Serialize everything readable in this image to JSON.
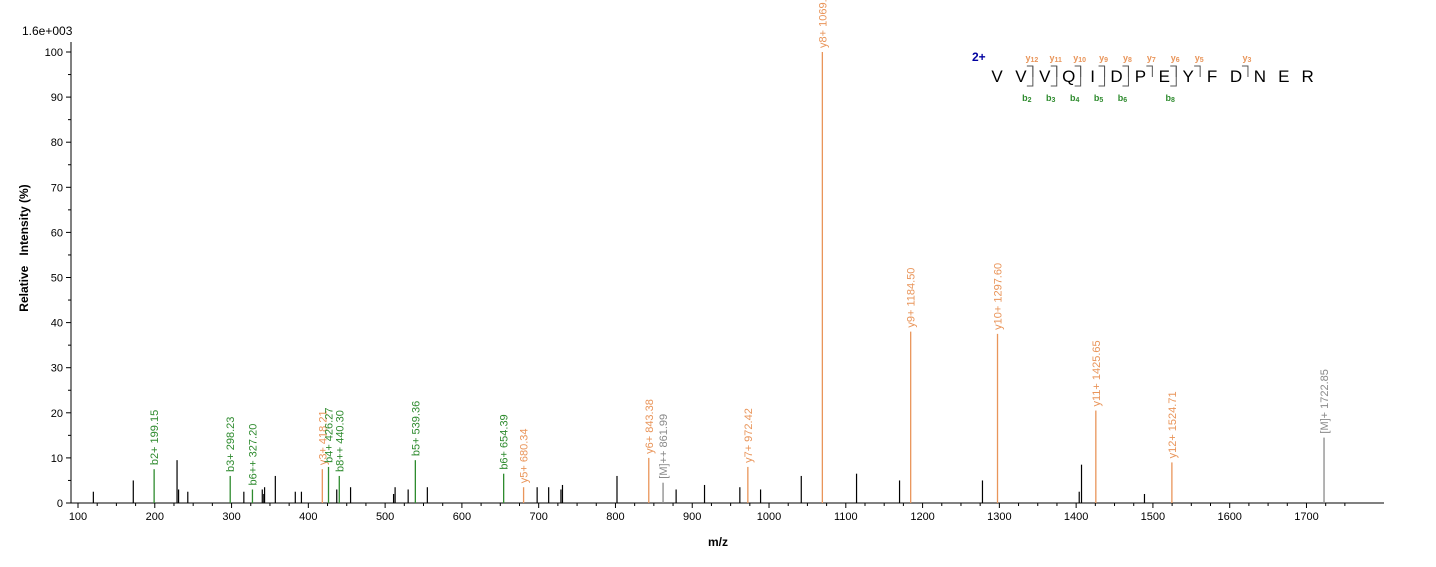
{
  "chart_data": {
    "type": "bar",
    "scale_label": "1.6e+003",
    "xlabel": "m/z",
    "ylabel": "Relative   Intensity (%)",
    "xlim": [
      100,
      1750
    ],
    "ylim": [
      0,
      100
    ],
    "x_ticks": [
      100,
      200,
      300,
      400,
      500,
      600,
      700,
      800,
      900,
      1000,
      1100,
      1200,
      1300,
      1400,
      1500,
      1600,
      1700
    ],
    "y_ticks": [
      0,
      10,
      20,
      30,
      40,
      50,
      60,
      70,
      80,
      90,
      100
    ],
    "colors": {
      "b_ion": "#2e8b2e",
      "y_ion": "#e9955a",
      "precursor": "#8a8a8a",
      "unassigned": "#000000",
      "axis": "#000000",
      "charge": "#0000a0"
    },
    "annotated_peaks": [
      {
        "mz": 199.15,
        "intensity": 7.5,
        "label": "b2+ 199.15",
        "ion": "b"
      },
      {
        "mz": 298.23,
        "intensity": 6.0,
        "label": "b3+ 298.23",
        "ion": "b"
      },
      {
        "mz": 327.2,
        "intensity": 3.0,
        "label": "b6++ 327.20",
        "ion": "b"
      },
      {
        "mz": 418.21,
        "intensity": 7.5,
        "label": "y3+ 418.21",
        "ion": "y"
      },
      {
        "mz": 426.27,
        "intensity": 8.0,
        "label": "b4+ 426.27",
        "ion": "b"
      },
      {
        "mz": 440.3,
        "intensity": 6.0,
        "label": "b8++ 440.30",
        "ion": "b"
      },
      {
        "mz": 539.36,
        "intensity": 9.5,
        "label": "b5+ 539.36",
        "ion": "b"
      },
      {
        "mz": 654.39,
        "intensity": 6.5,
        "label": "b6+ 654.39",
        "ion": "b"
      },
      {
        "mz": 680.34,
        "intensity": 3.5,
        "label": "y5+ 680.34",
        "ion": "y"
      },
      {
        "mz": 843.38,
        "intensity": 10.0,
        "label": "y6+ 843.38",
        "ion": "y"
      },
      {
        "mz": 861.99,
        "intensity": 4.5,
        "label": "[M]++ 861.99",
        "ion": "precursor"
      },
      {
        "mz": 972.42,
        "intensity": 8.0,
        "label": "y7+ 972.42",
        "ion": "y"
      },
      {
        "mz": 1069.47,
        "intensity": 100.0,
        "label": "y8+ 1069.47",
        "ion": "y"
      },
      {
        "mz": 1184.5,
        "intensity": 38.0,
        "label": "y9+ 1184.50",
        "ion": "y"
      },
      {
        "mz": 1297.6,
        "intensity": 37.5,
        "label": "y10+ 1297.60",
        "ion": "y"
      },
      {
        "mz": 1425.65,
        "intensity": 20.5,
        "label": "y11+ 1425.65",
        "ion": "y"
      },
      {
        "mz": 1524.71,
        "intensity": 9.0,
        "label": "y12+ 1524.71",
        "ion": "y"
      },
      {
        "mz": 1722.85,
        "intensity": 14.5,
        "label": "[M]+ 1722.85",
        "ion": "precursor"
      }
    ],
    "unassigned_peaks": [
      {
        "mz": 120,
        "intensity": 2.5
      },
      {
        "mz": 172,
        "intensity": 5.0
      },
      {
        "mz": 229,
        "intensity": 9.5
      },
      {
        "mz": 231,
        "intensity": 3.0
      },
      {
        "mz": 243,
        "intensity": 2.5
      },
      {
        "mz": 316,
        "intensity": 2.5
      },
      {
        "mz": 340,
        "intensity": 3.0
      },
      {
        "mz": 342,
        "intensity": 2.0
      },
      {
        "mz": 343,
        "intensity": 3.5
      },
      {
        "mz": 357,
        "intensity": 6.0
      },
      {
        "mz": 383,
        "intensity": 2.5
      },
      {
        "mz": 391,
        "intensity": 2.5
      },
      {
        "mz": 437,
        "intensity": 3.0
      },
      {
        "mz": 455,
        "intensity": 3.5
      },
      {
        "mz": 511,
        "intensity": 2.0
      },
      {
        "mz": 513,
        "intensity": 3.5
      },
      {
        "mz": 530,
        "intensity": 3.0
      },
      {
        "mz": 555,
        "intensity": 3.5
      },
      {
        "mz": 698,
        "intensity": 3.5
      },
      {
        "mz": 713,
        "intensity": 3.5
      },
      {
        "mz": 729,
        "intensity": 3.0
      },
      {
        "mz": 731,
        "intensity": 4.0
      },
      {
        "mz": 802,
        "intensity": 6.0
      },
      {
        "mz": 879,
        "intensity": 3.0
      },
      {
        "mz": 916,
        "intensity": 4.0
      },
      {
        "mz": 962,
        "intensity": 3.5
      },
      {
        "mz": 989,
        "intensity": 3.0
      },
      {
        "mz": 1042,
        "intensity": 6.0
      },
      {
        "mz": 1114,
        "intensity": 6.5
      },
      {
        "mz": 1170,
        "intensity": 5.0
      },
      {
        "mz": 1278,
        "intensity": 5.0
      },
      {
        "mz": 1404,
        "intensity": 2.5
      },
      {
        "mz": 1407,
        "intensity": 8.5
      },
      {
        "mz": 1489,
        "intensity": 2.0
      }
    ],
    "sequence": {
      "charge": "2+",
      "residues": [
        "V",
        "V",
        "V",
        "Q",
        "I",
        "D",
        "P",
        "E",
        "Y",
        "F",
        "D",
        "N",
        "E",
        "R"
      ],
      "y_labels": [
        {
          "after": 2,
          "label": "y",
          "sub": "12"
        },
        {
          "after": 3,
          "label": "y",
          "sub": "11"
        },
        {
          "after": 4,
          "label": "y",
          "sub": "10"
        },
        {
          "after": 5,
          "label": "y",
          "sub": "9"
        },
        {
          "after": 6,
          "label": "y",
          "sub": "8"
        },
        {
          "after": 7,
          "label": "y",
          "sub": "7"
        },
        {
          "after": 8,
          "label": "y",
          "sub": "6"
        },
        {
          "after": 9,
          "label": "y",
          "sub": "5"
        },
        {
          "after": 11,
          "label": "y",
          "sub": "3"
        }
      ],
      "b_labels": [
        {
          "after": 2,
          "label": "b",
          "sub": "2"
        },
        {
          "after": 3,
          "label": "b",
          "sub": "3"
        },
        {
          "after": 4,
          "label": "b",
          "sub": "4"
        },
        {
          "after": 5,
          "label": "b",
          "sub": "5"
        },
        {
          "after": 6,
          "label": "b",
          "sub": "6"
        },
        {
          "after": 8,
          "label": "b",
          "sub": "8"
        }
      ]
    }
  }
}
